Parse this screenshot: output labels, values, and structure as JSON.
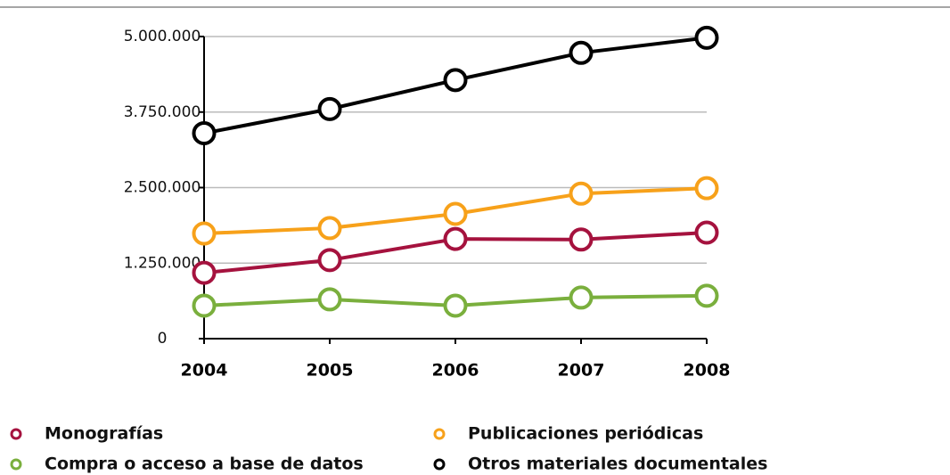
{
  "chart_data": {
    "type": "line",
    "categories": [
      "2004",
      "2005",
      "2006",
      "2007",
      "2008"
    ],
    "series": [
      {
        "name": "Monografías",
        "color": "#a5123e",
        "values": [
          1090000,
          1300000,
          1650000,
          1640000,
          1755000
        ]
      },
      {
        "name": "Publicaciones periódicas",
        "color": "#f7a11a",
        "values": [
          1740000,
          1830000,
          2065000,
          2400000,
          2490000
        ]
      },
      {
        "name": "Compra o acceso a base de datos",
        "color": "#7aaf3d",
        "values": [
          546000,
          650000,
          546000,
          680000,
          710000
        ]
      },
      {
        "name": "Otros materiales documentales",
        "color": "#000000",
        "values": [
          3400000,
          3800000,
          4280000,
          4730000,
          4980000
        ]
      }
    ],
    "ylim": [
      0,
      5000000
    ],
    "yticks": [
      0,
      {
        "value": 1250000,
        "label": "1.250.000"
      },
      {
        "value": 2500000,
        "label": "2.500.000"
      },
      {
        "value": 3750000,
        "label": "3.750.000"
      },
      {
        "value": 5000000,
        "label": "5.000.000"
      }
    ],
    "grid": true
  }
}
